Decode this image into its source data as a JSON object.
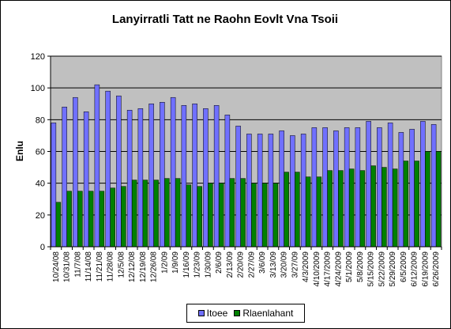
{
  "chart_data": {
    "type": "bar",
    "title": "Lanyirratli Tatt ne Raohn Eovlt Vna Tsoii",
    "xlabel": "",
    "ylabel": "Enlu",
    "ylim": [
      0,
      120
    ],
    "yticks": [
      0,
      20,
      40,
      60,
      80,
      100,
      120
    ],
    "grid": true,
    "legend_position": "bottom",
    "categories": [
      "10/24/08",
      "10/31/08",
      "11/7/08",
      "11/14/08",
      "11/21/08",
      "11/28/08",
      "12/5/08",
      "12/12/08",
      "12/19/08",
      "12/26/08",
      "1/2/09",
      "1/9/09",
      "1/16/09",
      "1/23/09",
      "1/30/09",
      "2/6/09",
      "2/13/09",
      "2/20/09",
      "2/27/09",
      "3/6/09",
      "3/13/09",
      "3/20/09",
      "3/27/09",
      "4/3/2009",
      "4/10/2009",
      "4/17/2009",
      "4/24/2009",
      "5/1/2009",
      "5/8/2009",
      "5/15/2009",
      "5/22/2009",
      "5/29/2009",
      "6/5/2009",
      "6/12/2009",
      "6/19/2009",
      "6/26/2009"
    ],
    "series": [
      {
        "name": "Itoee",
        "color": "#7070FF",
        "values": [
          78,
          88,
          94,
          85,
          102,
          98,
          95,
          86,
          87,
          90,
          91,
          94,
          89,
          90,
          87,
          89,
          83,
          76,
          71,
          71,
          71,
          73,
          70,
          71,
          75,
          75,
          73,
          75,
          75,
          79,
          75,
          78,
          72,
          74,
          79,
          77
        ]
      },
      {
        "name": "Rlaenlahant",
        "color": "#008000",
        "values": [
          28,
          35,
          35,
          35,
          35,
          37,
          38,
          42,
          42,
          42,
          43,
          43,
          39,
          38,
          40,
          40,
          43,
          43,
          40,
          40,
          40,
          47,
          47,
          44,
          44,
          48,
          48,
          49,
          48,
          51,
          50,
          49,
          54,
          54,
          60,
          60
        ]
      }
    ]
  },
  "colors": {
    "plot_background": "#C0C0C0",
    "chart_background": "#FFFFFF",
    "gridline": "#000000"
  }
}
